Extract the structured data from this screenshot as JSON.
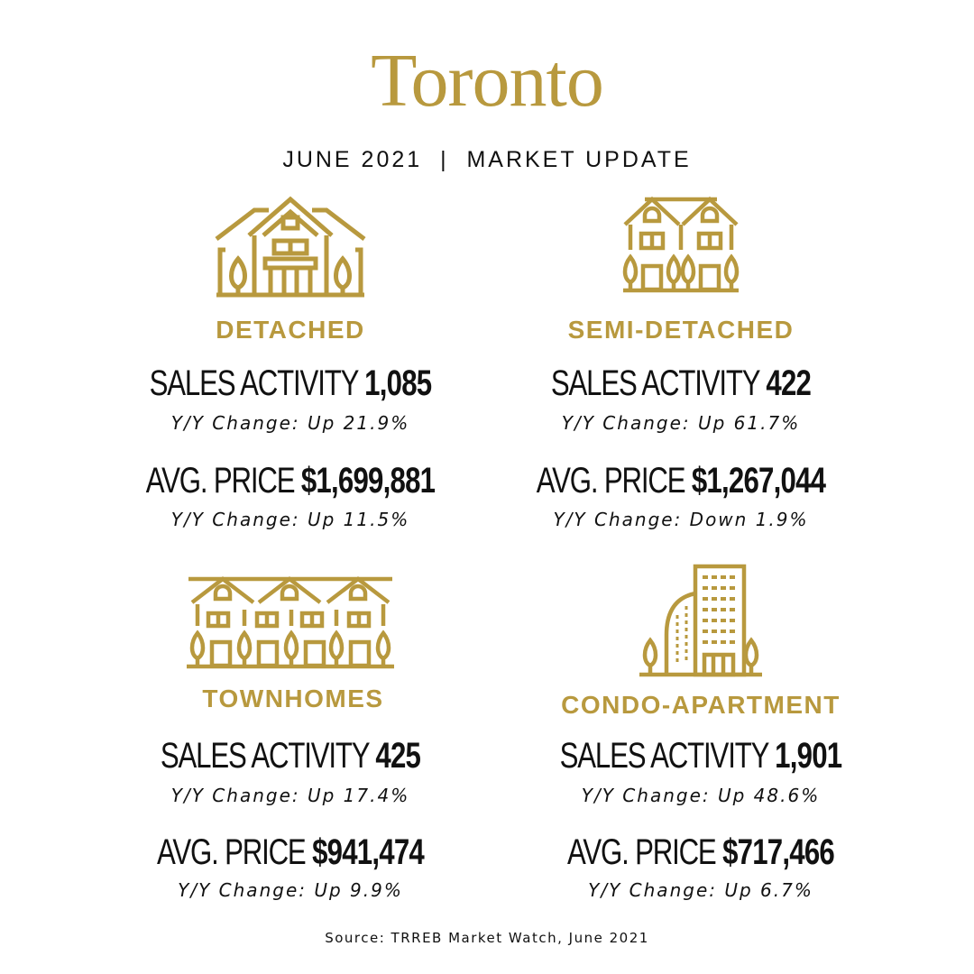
{
  "title": "Toronto",
  "subtitle": "JUNE 2021  |  MARKET UPDATE",
  "accent_color": "#b8993e",
  "sales_label": "SALES ACTIVITY",
  "price_label": "AVG. PRICE",
  "categories": [
    {
      "name": "DETACHED",
      "icon": "detached-house-icon",
      "sales": "1,085",
      "sales_change": "Y/Y Change: Up 21.9%",
      "price": "$1,699,881",
      "price_change": "Y/Y Change: Up 11.5%"
    },
    {
      "name": "SEMI-DETACHED",
      "icon": "semi-detached-house-icon",
      "sales": "422",
      "sales_change": "Y/Y Change: Up 61.7%",
      "price": "$1,267,044",
      "price_change": "Y/Y Change: Down 1.9%"
    },
    {
      "name": "TOWNHOMES",
      "icon": "townhomes-icon",
      "sales": "425",
      "sales_change": "Y/Y Change: Up 17.4%",
      "price": "$941,474",
      "price_change": "Y/Y Change: Up 9.9%"
    },
    {
      "name": "CONDO-APARTMENT",
      "icon": "condo-building-icon",
      "sales": "1,901",
      "sales_change": "Y/Y Change: Up 48.6%",
      "price": "$717,466",
      "price_change": "Y/Y Change: Up 6.7%"
    }
  ],
  "source": "Source: TRREB Market Watch, June 2021"
}
